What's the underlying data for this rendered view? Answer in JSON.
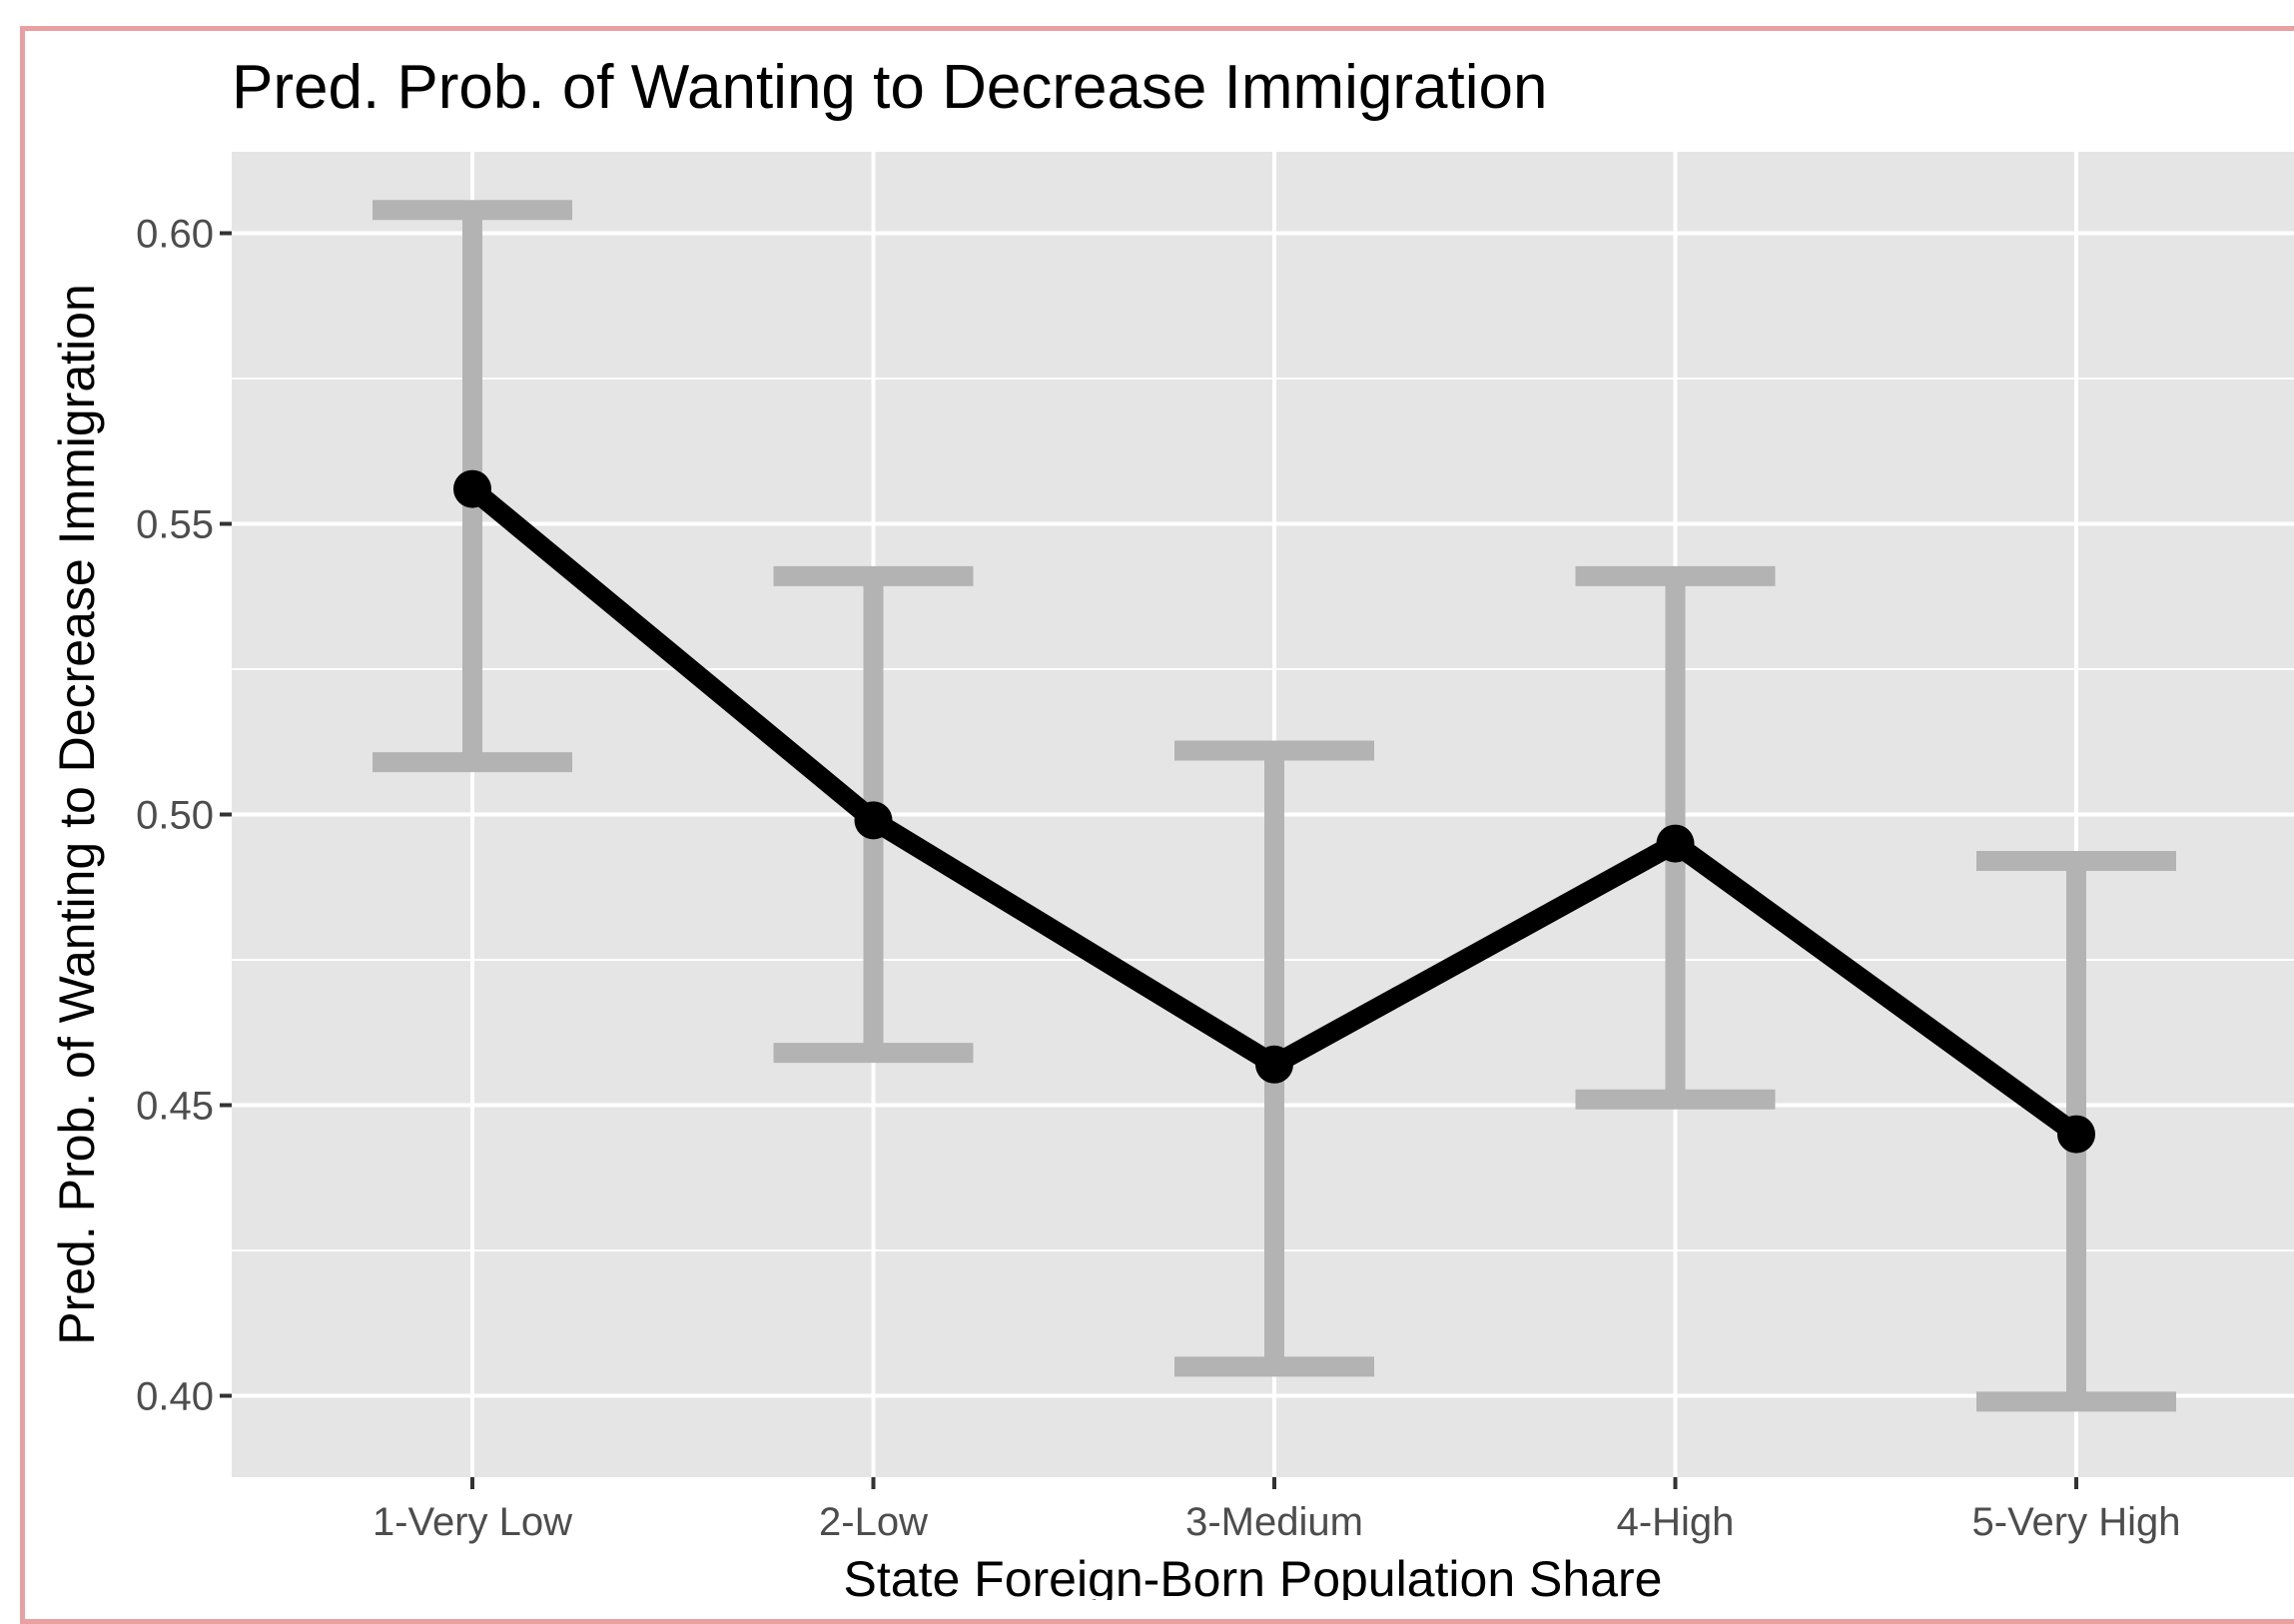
{
  "chart_data": {
    "type": "line",
    "title": "Pred. Prob. of Wanting to Decrease Immigration",
    "xlabel": "State Foreign-Born Population Share",
    "ylabel": "Pred. Prob. of Wanting to Decrease Immigration",
    "categories": [
      "1-Very Low",
      "2-Low",
      "3-Medium",
      "4-High",
      "5-Very High"
    ],
    "values": [
      0.556,
      0.499,
      0.457,
      0.495,
      0.445
    ],
    "error_bars": {
      "lower": [
        0.509,
        0.459,
        0.405,
        0.451,
        0.399
      ],
      "upper": [
        0.604,
        0.541,
        0.511,
        0.541,
        0.492
      ]
    },
    "ylim": [
      0.386,
      0.614
    ],
    "yticks": [
      0.4,
      0.45,
      0.5,
      0.55,
      0.6
    ],
    "ytick_labels": [
      "0.40",
      "0.45",
      "0.50",
      "0.55",
      "0.60"
    ],
    "grid": true,
    "legend": "none",
    "colors": {
      "line": "#000000",
      "error_bar": "#b3b3b3",
      "panel": "#e5e5e5",
      "grid": "#ffffff",
      "frame": "#e8a0a0"
    }
  }
}
